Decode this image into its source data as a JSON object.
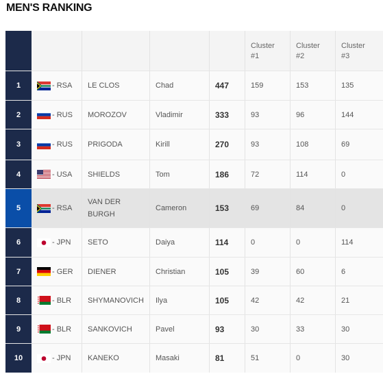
{
  "title": "MEN'S RANKING",
  "headers": {
    "cluster1": "Cluster #1",
    "cluster2": "Cluster #2",
    "cluster3": "Cluster #3"
  },
  "rows": [
    {
      "rank": "1",
      "flag": "rsa",
      "nation": "- RSA",
      "last": "LE CLOS",
      "first": "Chad",
      "points": "447",
      "c1": "159",
      "c2": "153",
      "c3": "135"
    },
    {
      "rank": "2",
      "flag": "rus",
      "nation": "- RUS",
      "last": "MOROZOV",
      "first": "Vladimir",
      "points": "333",
      "c1": "93",
      "c2": "96",
      "c3": "144"
    },
    {
      "rank": "3",
      "flag": "rus",
      "nation": "- RUS",
      "last": "PRIGODA",
      "first": "Kirill",
      "points": "270",
      "c1": "93",
      "c2": "108",
      "c3": "69"
    },
    {
      "rank": "4",
      "flag": "usa",
      "nation": "- USA",
      "last": "SHIELDS",
      "first": "Tom",
      "points": "186",
      "c1": "72",
      "c2": "114",
      "c3": "0"
    },
    {
      "rank": "5",
      "flag": "rsa",
      "nation": "- RSA",
      "last": "VAN DER BURGH",
      "first": "Cameron",
      "points": "153",
      "c1": "69",
      "c2": "84",
      "c3": "0",
      "selected": true
    },
    {
      "rank": "6",
      "flag": "jpn",
      "nation": "- JPN",
      "last": "SETO",
      "first": "Daiya",
      "points": "114",
      "c1": "0",
      "c2": "0",
      "c3": "114"
    },
    {
      "rank": "7",
      "flag": "ger",
      "nation": "- GER",
      "last": "DIENER",
      "first": "Christian",
      "points": "105",
      "c1": "39",
      "c2": "60",
      "c3": "6"
    },
    {
      "rank": "8",
      "flag": "blr",
      "nation": "- BLR",
      "last": "SHYMANOVICH",
      "first": "Ilya",
      "points": "105",
      "c1": "42",
      "c2": "42",
      "c3": "21"
    },
    {
      "rank": "9",
      "flag": "blr",
      "nation": "- BLR",
      "last": "SANKOVICH",
      "first": "Pavel",
      "points": "93",
      "c1": "30",
      "c2": "33",
      "c3": "30"
    },
    {
      "rank": "10",
      "flag": "jpn",
      "nation": "- JPN",
      "last": "KANEKO",
      "first": "Masaki",
      "points": "81",
      "c1": "51",
      "c2": "0",
      "c3": "30"
    }
  ]
}
